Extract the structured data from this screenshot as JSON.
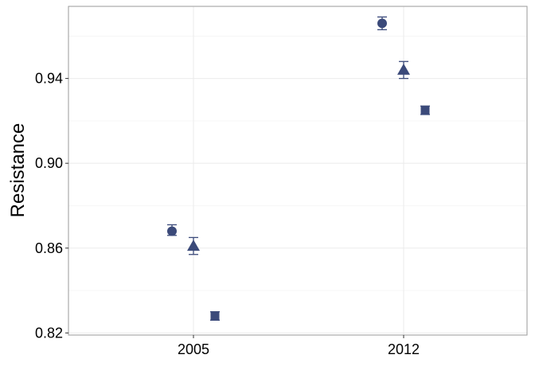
{
  "chart_data": {
    "type": "scatter",
    "title": "",
    "xlabel": "",
    "ylabel": "Resistance",
    "x_ticks": [
      "2005",
      "2012"
    ],
    "y_ticks": [
      "0.82",
      "0.86",
      "0.90",
      "0.94"
    ],
    "ylim": [
      0.819,
      0.974
    ],
    "grid": true,
    "legend": "none",
    "marker_color": "#3b4a7a",
    "series": [
      {
        "marker": "circle",
        "points": [
          {
            "x": "2005",
            "y": 0.868,
            "low": 0.866,
            "high": 0.871
          },
          {
            "x": "2012",
            "y": 0.966,
            "low": 0.963,
            "high": 0.969
          }
        ]
      },
      {
        "marker": "triangle",
        "points": [
          {
            "x": "2005",
            "y": 0.861,
            "low": 0.857,
            "high": 0.865
          },
          {
            "x": "2012",
            "y": 0.944,
            "low": 0.94,
            "high": 0.948
          }
        ]
      },
      {
        "marker": "square",
        "points": [
          {
            "x": "2005",
            "y": 0.828,
            "low": 0.826,
            "high": 0.83
          },
          {
            "x": "2012",
            "y": 0.925,
            "low": 0.923,
            "high": 0.927
          }
        ]
      }
    ]
  }
}
